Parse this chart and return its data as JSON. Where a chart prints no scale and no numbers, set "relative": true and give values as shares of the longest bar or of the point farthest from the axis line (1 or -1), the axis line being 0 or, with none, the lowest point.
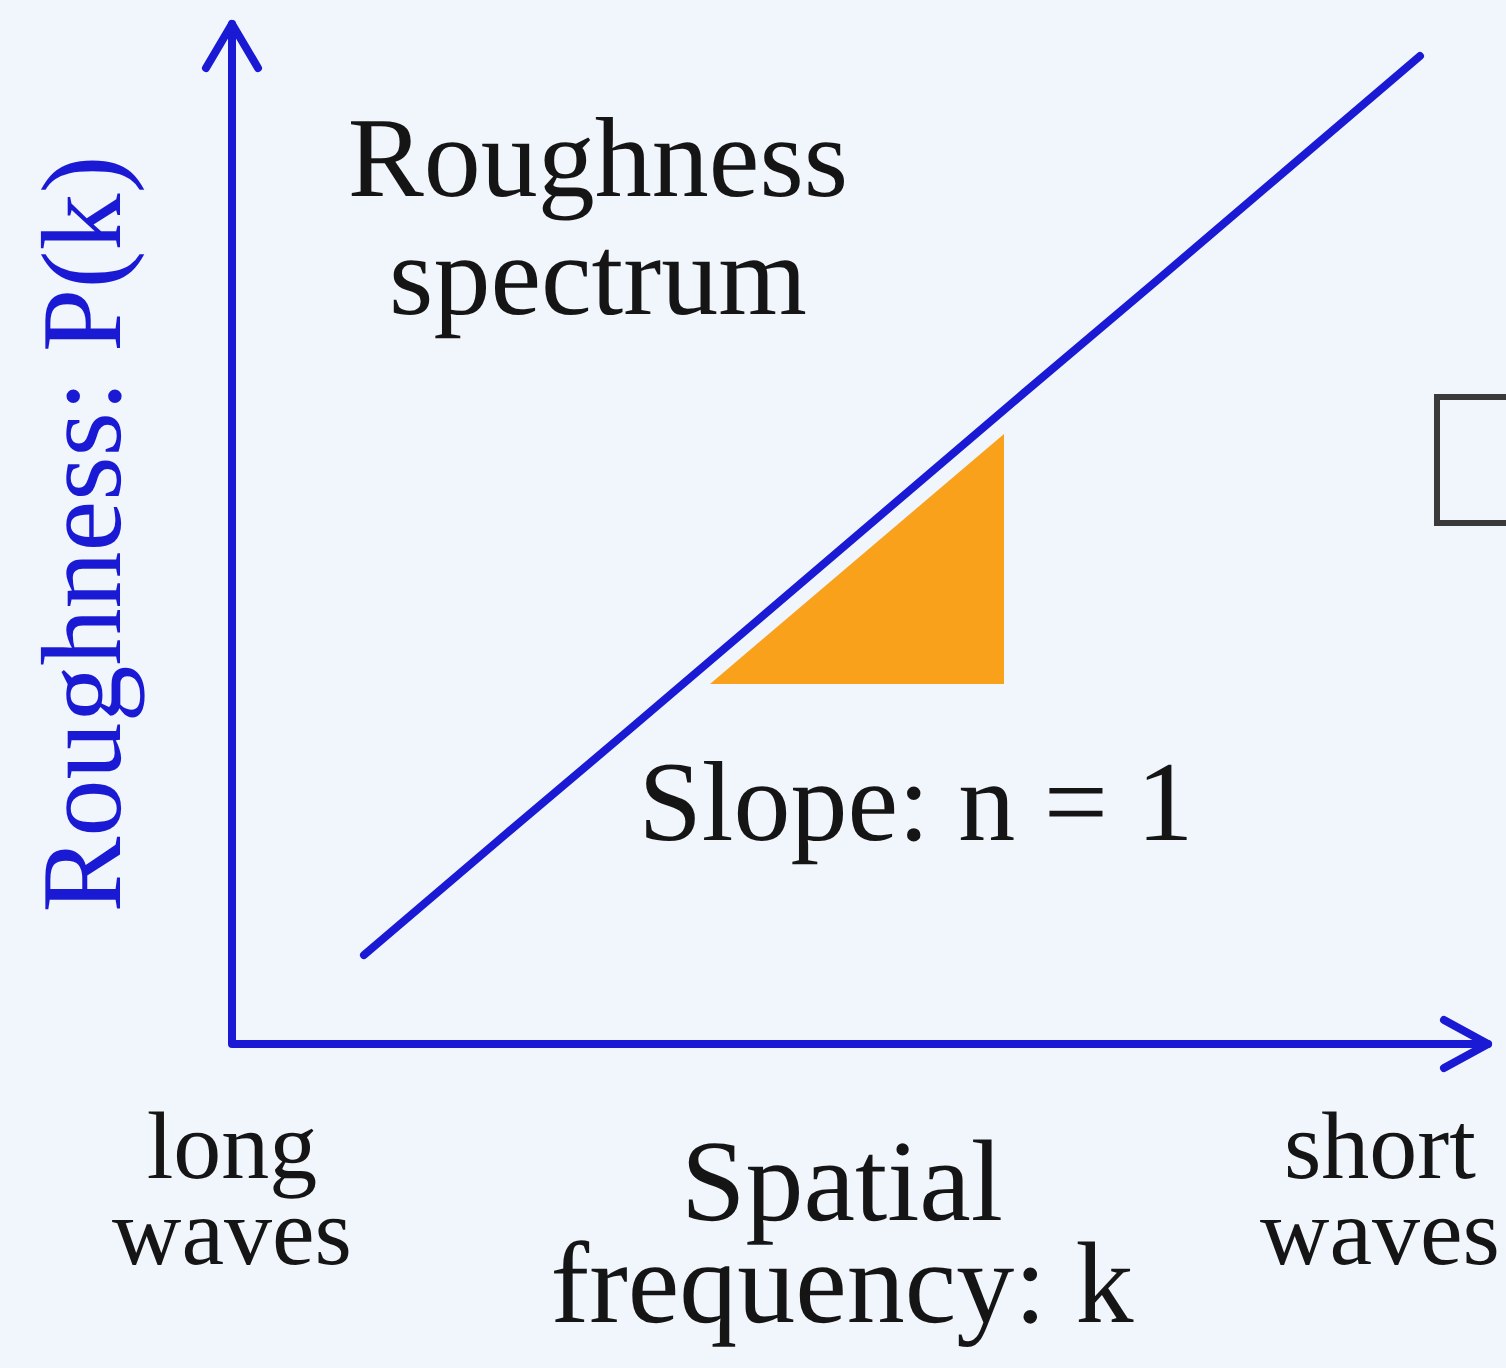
{
  "chart_data": {
    "type": "line",
    "relative": true,
    "tick_labels": false,
    "marker": "none",
    "line_style": "solid",
    "xlabel": "Spatial frequency: k",
    "ylabel": "Roughness: P(k)",
    "annotations": [
      "Roughness spectrum",
      "Slope: n = 1",
      "long waves",
      "short waves"
    ],
    "categories": [
      null,
      null,
      null,
      null,
      null,
      null,
      null,
      null,
      null,
      null
    ],
    "color": "#1a1ad4",
    "values": [
      null,
      0.09,
      0.204,
      0.317,
      0.431,
      0.545,
      0.659,
      0.772,
      0.886,
      1
    ]
  }
}
